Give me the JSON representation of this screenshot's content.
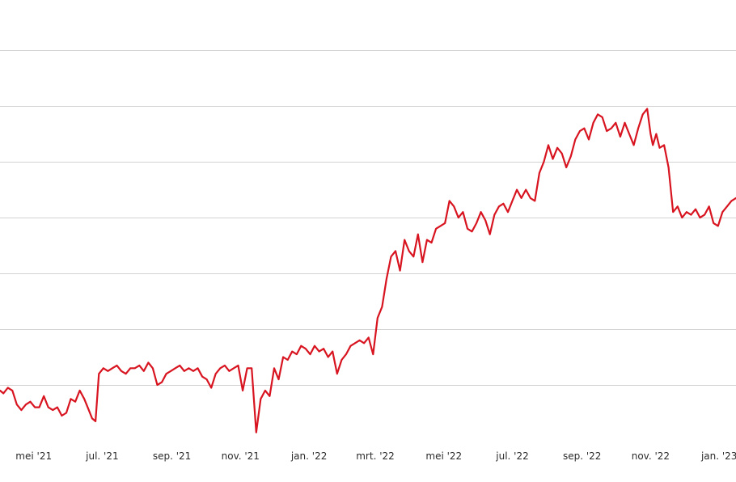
{
  "chart_data": {
    "type": "line",
    "title": "",
    "xlabel": "",
    "ylabel": "",
    "grid": true,
    "legend": "none",
    "series_color": "#d7141f",
    "grid_color": "#d2d2d2",
    "x_ticks": [
      {
        "label": "mei '21",
        "date": "2021-05-01"
      },
      {
        "label": "jul. '21",
        "date": "2021-07-01"
      },
      {
        "label": "sep. '21",
        "date": "2021-09-01"
      },
      {
        "label": "nov. '21",
        "date": "2021-11-01"
      },
      {
        "label": "jan. '22",
        "date": "2022-01-01"
      },
      {
        "label": "mrt. '22",
        "date": "2022-03-01"
      },
      {
        "label": "mei '22",
        "date": "2022-05-01"
      },
      {
        "label": "jul. '22",
        "date": "2022-07-01"
      },
      {
        "label": "sep. '22",
        "date": "2022-09-01"
      },
      {
        "label": "nov. '22",
        "date": "2022-11-01"
      },
      {
        "label": "jan. '23",
        "date": "2023-01-01"
      }
    ],
    "xlim": [
      "2021-04-01",
      "2023-01-16"
    ],
    "ylim": [
      0,
      7.9
    ],
    "y_gridlines": [
      1,
      2,
      3,
      4,
      5,
      6,
      7
    ],
    "series": [
      {
        "x": [
          "2021-04-01",
          "2021-04-04",
          "2021-04-08",
          "2021-04-12",
          "2021-04-16",
          "2021-04-20",
          "2021-04-24",
          "2021-04-28",
          "2021-05-02",
          "2021-05-06",
          "2021-05-10",
          "2021-05-14",
          "2021-05-18",
          "2021-05-22",
          "2021-05-26",
          "2021-05-30",
          "2021-06-03",
          "2021-06-07",
          "2021-06-11",
          "2021-06-15",
          "2021-06-19",
          "2021-06-22",
          "2021-06-25",
          "2021-06-28",
          "2021-07-02",
          "2021-07-06",
          "2021-07-10",
          "2021-07-14",
          "2021-07-18",
          "2021-07-22",
          "2021-07-26",
          "2021-07-30",
          "2021-08-03",
          "2021-08-07",
          "2021-08-11",
          "2021-08-15",
          "2021-08-19",
          "2021-08-23",
          "2021-08-27",
          "2021-08-31",
          "2021-09-04",
          "2021-09-08",
          "2021-09-12",
          "2021-09-16",
          "2021-09-20",
          "2021-09-24",
          "2021-09-28",
          "2021-10-02",
          "2021-10-06",
          "2021-10-10",
          "2021-10-14",
          "2021-10-18",
          "2021-10-22",
          "2021-10-26",
          "2021-10-30",
          "2021-11-03",
          "2021-11-07",
          "2021-11-11",
          "2021-11-15",
          "2021-11-19",
          "2021-11-23",
          "2021-11-27",
          "2021-12-01",
          "2021-12-05",
          "2021-12-09",
          "2021-12-13",
          "2021-12-17",
          "2021-12-21",
          "2021-12-25",
          "2021-12-29",
          "2022-01-02",
          "2022-01-06",
          "2022-01-10",
          "2022-01-14",
          "2022-01-18",
          "2022-01-22",
          "2022-01-26",
          "2022-01-30",
          "2022-02-03",
          "2022-02-07",
          "2022-02-11",
          "2022-02-15",
          "2022-02-19",
          "2022-02-23",
          "2022-02-27",
          "2022-03-03",
          "2022-03-07",
          "2022-03-11",
          "2022-03-15",
          "2022-03-19",
          "2022-03-23",
          "2022-03-27",
          "2022-03-31",
          "2022-04-04",
          "2022-04-08",
          "2022-04-12",
          "2022-04-16",
          "2022-04-20",
          "2022-04-24",
          "2022-04-28",
          "2022-05-02",
          "2022-05-06",
          "2022-05-10",
          "2022-05-14",
          "2022-05-18",
          "2022-05-22",
          "2022-05-26",
          "2022-05-30",
          "2022-06-03",
          "2022-06-07",
          "2022-06-11",
          "2022-06-15",
          "2022-06-19",
          "2022-06-23",
          "2022-06-27",
          "2022-07-01",
          "2022-07-05",
          "2022-07-09",
          "2022-07-13",
          "2022-07-17",
          "2022-07-21",
          "2022-07-25",
          "2022-07-29",
          "2022-08-02",
          "2022-08-06",
          "2022-08-10",
          "2022-08-14",
          "2022-08-18",
          "2022-08-22",
          "2022-08-26",
          "2022-08-30",
          "2022-09-03",
          "2022-09-07",
          "2022-09-11",
          "2022-09-15",
          "2022-09-19",
          "2022-09-23",
          "2022-09-27",
          "2022-10-01",
          "2022-10-05",
          "2022-10-09",
          "2022-10-13",
          "2022-10-17",
          "2022-10-21",
          "2022-10-25",
          "2022-10-29",
          "2022-11-01",
          "2022-11-03",
          "2022-11-06",
          "2022-11-09",
          "2022-11-13",
          "2022-11-17",
          "2022-11-21",
          "2022-11-25",
          "2022-11-29",
          "2022-12-03",
          "2022-12-07",
          "2022-12-11",
          "2022-12-15",
          "2022-12-19",
          "2022-12-23",
          "2022-12-27",
          "2022-12-31",
          "2023-01-04",
          "2023-01-08",
          "2023-01-12",
          "2023-01-16"
        ],
        "y": [
          0.9,
          0.85,
          0.95,
          0.9,
          0.65,
          0.55,
          0.65,
          0.7,
          0.6,
          0.6,
          0.8,
          0.6,
          0.55,
          0.6,
          0.45,
          0.5,
          0.75,
          0.7,
          0.9,
          0.75,
          0.55,
          0.4,
          0.35,
          1.2,
          1.3,
          1.25,
          1.3,
          1.35,
          1.25,
          1.2,
          1.3,
          1.3,
          1.35,
          1.25,
          1.4,
          1.3,
          1.0,
          1.05,
          1.2,
          1.25,
          1.3,
          1.35,
          1.25,
          1.3,
          1.25,
          1.3,
          1.15,
          1.1,
          0.95,
          1.2,
          1.3,
          1.35,
          1.25,
          1.3,
          1.35,
          0.9,
          1.3,
          1.3,
          0.15,
          0.75,
          0.9,
          0.8,
          1.3,
          1.1,
          1.5,
          1.45,
          1.6,
          1.55,
          1.7,
          1.65,
          1.55,
          1.7,
          1.6,
          1.65,
          1.5,
          1.6,
          1.2,
          1.45,
          1.55,
          1.7,
          1.75,
          1.8,
          1.75,
          1.85,
          1.55,
          2.2,
          2.4,
          2.9,
          3.3,
          3.4,
          3.05,
          3.6,
          3.4,
          3.3,
          3.7,
          3.2,
          3.6,
          3.55,
          3.8,
          3.85,
          3.9,
          4.3,
          4.2,
          4.0,
          4.1,
          3.8,
          3.75,
          3.9,
          4.1,
          3.95,
          3.7,
          4.05,
          4.2,
          4.25,
          4.1,
          4.3,
          4.5,
          4.35,
          4.5,
          4.35,
          4.3,
          4.8,
          5.0,
          5.3,
          5.05,
          5.25,
          5.15,
          4.9,
          5.1,
          5.4,
          5.55,
          5.6,
          5.4,
          5.7,
          5.85,
          5.8,
          5.55,
          5.6,
          5.7,
          5.45,
          5.7,
          5.5,
          5.3,
          5.6,
          5.85,
          5.95,
          5.5,
          5.3,
          5.5,
          5.25,
          5.3,
          4.9,
          4.1,
          4.2,
          4.0,
          4.1,
          4.05,
          4.15,
          4.0,
          4.05,
          4.2,
          3.9,
          3.85,
          4.1,
          4.2,
          4.3,
          4.35
        ]
      }
    ]
  }
}
